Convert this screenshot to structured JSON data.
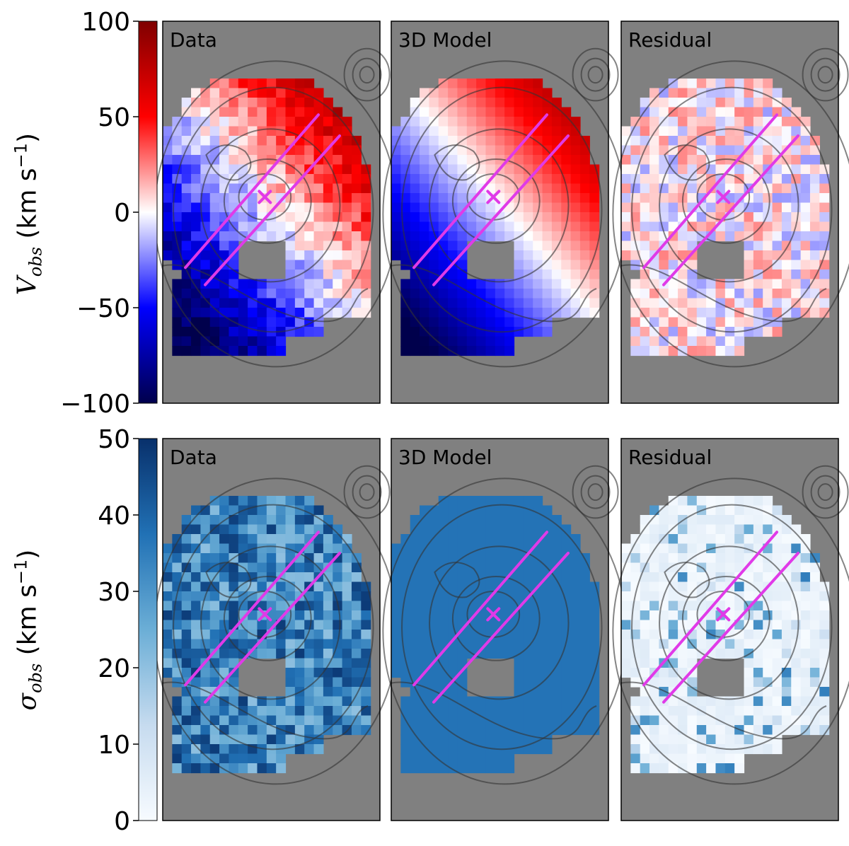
{
  "chart_data": [
    {
      "type": "heatmap",
      "quantity": "V_obs",
      "colormap": "seismic (blue-white-red)",
      "colorbar": {
        "min": -100,
        "max": 100,
        "ticks": [
          "100",
          "50",
          "0",
          "−50",
          "−100"
        ]
      },
      "ylabel_symbol": "V",
      "ylabel_sub": "obs",
      "ylabel_units": "(km s",
      "ylabel_exp": "−1",
      "ylabel_close": ")",
      "panels": [
        {
          "label": "Data"
        },
        {
          "label": "3D Model"
        },
        {
          "label": "Residual"
        }
      ],
      "background_color": "#808080",
      "overlay_color": "#e03ae8"
    },
    {
      "type": "heatmap",
      "quantity": "sigma_obs",
      "colormap": "Blues",
      "colorbar": {
        "min": 0,
        "max": 50,
        "ticks": [
          "50",
          "40",
          "30",
          "20",
          "10",
          "0"
        ]
      },
      "ylabel_symbol": "σ",
      "ylabel_sub": "obs",
      "ylabel_units": "(km s",
      "ylabel_exp": "−1",
      "ylabel_close": ")",
      "panels": [
        {
          "label": "Data"
        },
        {
          "label": "3D Model"
        },
        {
          "label": "Residual"
        }
      ],
      "background_color": "#808080",
      "overlay_color": "#e03ae8"
    }
  ]
}
